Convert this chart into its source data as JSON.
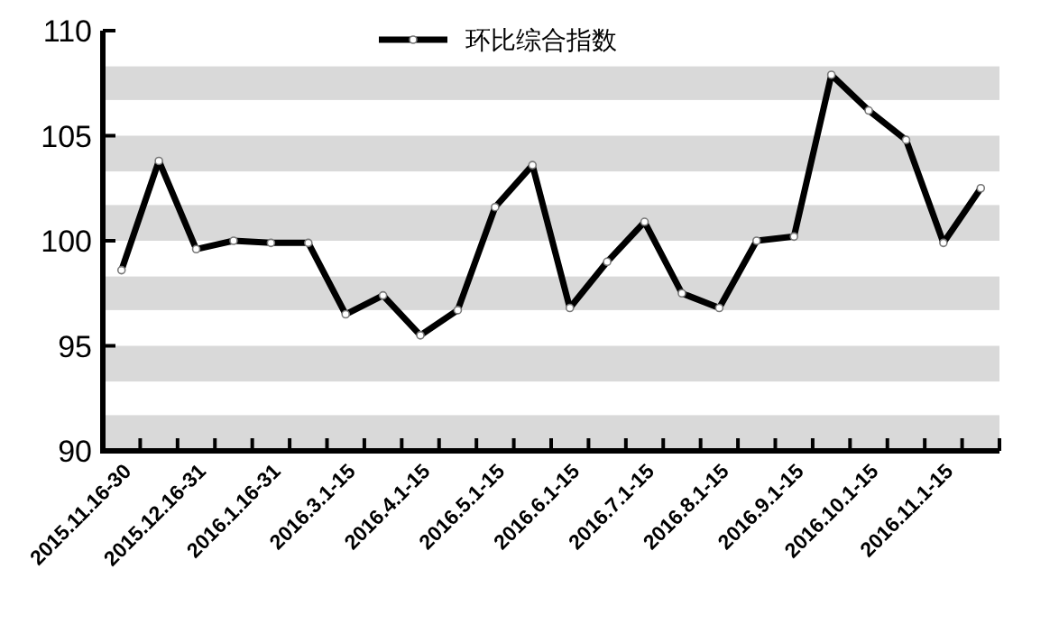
{
  "chart_data": {
    "type": "line",
    "categories": [
      "2015.11.16-30",
      null,
      "2015.12.16-31",
      null,
      "2016.1.16-31",
      null,
      "2016.3.1-15",
      null,
      "2016.4.1-15",
      null,
      "2016.5.1-15",
      null,
      "2016.6.1-15",
      null,
      "2016.7.1-15",
      null,
      "2016.8.1-15",
      null,
      "2016.9.1-15",
      null,
      "2016.10.1-15",
      null,
      "2016.11.1-15",
      null
    ],
    "series": [
      {
        "name": "环比综合指数",
        "color": "#000000",
        "values": [
          98.6,
          103.8,
          99.6,
          100.0,
          99.9,
          99.9,
          96.5,
          97.4,
          95.5,
          96.7,
          101.6,
          103.6,
          96.8,
          99.0,
          100.9,
          97.5,
          96.8,
          100.0,
          100.2,
          107.9,
          106.2,
          104.8,
          99.9,
          102.5
        ]
      }
    ],
    "ylim": [
      90,
      110
    ],
    "yticks": [
      90,
      95,
      100,
      105,
      110
    ],
    "bands": [
      {
        "axis": "y",
        "from": 106.7,
        "to": 108.3,
        "color": "#d9d9d9"
      },
      {
        "axis": "y",
        "from": 103.3,
        "to": 105,
        "color": "#d9d9d9"
      },
      {
        "axis": "y",
        "from": 100,
        "to": 101.7,
        "color": "#d9d9d9"
      },
      {
        "axis": "y",
        "from": 96.7,
        "to": 98.3,
        "color": "#d9d9d9"
      },
      {
        "axis": "y",
        "from": 93.3,
        "to": 95,
        "color": "#d9d9d9"
      },
      {
        "axis": "y",
        "from": 90,
        "to": 91.7,
        "color": "#d9d9d9"
      }
    ],
    "marker": "circle",
    "line_style": "solid",
    "legend": "top",
    "grid": false
  }
}
